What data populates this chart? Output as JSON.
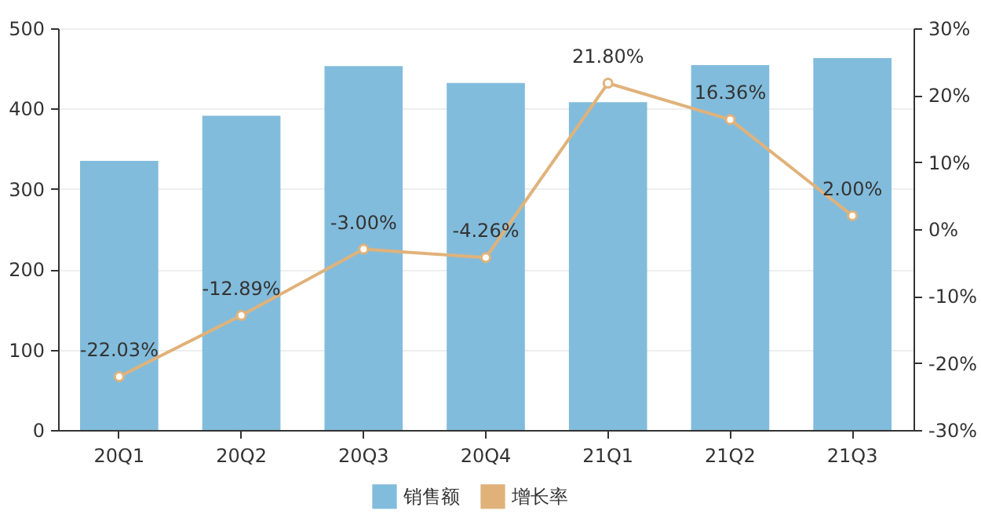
{
  "chart_data": {
    "type": "bar",
    "categories": [
      "20Q1",
      "20Q2",
      "20Q3",
      "20Q4",
      "21Q1",
      "21Q2",
      "21Q3"
    ],
    "series": [
      {
        "name": "销售额",
        "color": "#82bcdc",
        "values": [
          335,
          391,
          453,
          432,
          408,
          454,
          463
        ]
      },
      {
        "name": "增长率",
        "type": "line",
        "axis": "y2",
        "color": "#e0b27a",
        "marker": "circle",
        "values": [
          -22.03,
          -12.89,
          -3.0,
          -4.26,
          21.8,
          16.36,
          2.0
        ],
        "value_labels": [
          "-22.03%",
          "-12.89%",
          "-3.00%",
          "-4.26%",
          "21.80%",
          "16.36%",
          "2.00%"
        ]
      }
    ],
    "ylim": [
      0,
      500
    ],
    "yticks": [
      0,
      100,
      200,
      300,
      400,
      500
    ],
    "y2lim": [
      -30,
      30
    ],
    "y2ticks": [
      {
        "value": -30,
        "label": "-30%"
      },
      {
        "value": -20,
        "label": "-20%"
      },
      {
        "value": -10,
        "label": "-10%"
      },
      {
        "value": 0,
        "label": "0%"
      },
      {
        "value": 10,
        "label": "10%"
      },
      {
        "value": 20,
        "label": "20%"
      },
      {
        "value": 30,
        "label": "30%"
      }
    ],
    "grid": "y",
    "legend": "bottom"
  }
}
